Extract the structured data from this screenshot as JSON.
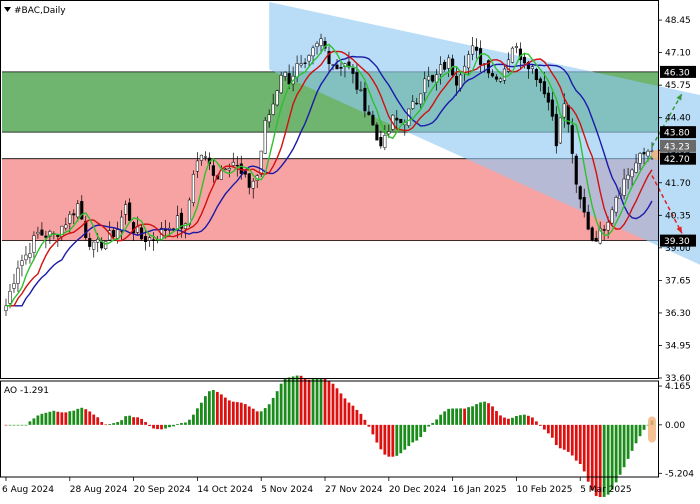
{
  "chart_data": [
    {
      "type": "candlestick",
      "title": "#BAC,Daily",
      "price_axis": {
        "ylim": [
          33.6,
          49.2
        ],
        "tick_labels": [
          "48.45",
          "47.10",
          "45.75",
          "44.40",
          "43.05",
          "41.70",
          "40.35",
          "39.00",
          "37.65",
          "36.30",
          "34.95",
          "33.60"
        ],
        "tick_values": [
          48.45,
          47.1,
          45.75,
          44.4,
          43.05,
          41.7,
          40.35,
          39.0,
          37.65,
          36.3,
          34.95,
          33.6
        ],
        "highlight_labels": [
          {
            "value": 46.3,
            "label": "46.30",
            "color": "#000000"
          },
          {
            "value": 43.8,
            "label": "43.80",
            "color": "#000000"
          },
          {
            "value": 43.23,
            "label": "43.23",
            "color": "#6a6a6a"
          },
          {
            "value": 42.7,
            "label": "42.70",
            "color": "#000000"
          },
          {
            "value": 39.3,
            "label": "39.30",
            "color": "#000000"
          }
        ]
      },
      "time_axis": {
        "labels": [
          "6 Aug 2024",
          "28 Aug 2024",
          "20 Sep 2024",
          "14 Oct 2024",
          "5 Nov 2024",
          "27 Nov 2024",
          "20 Dec 2024",
          "16 Jan 2025",
          "10 Feb 2025",
          "5 Mar 2025"
        ],
        "label_bar_index": [
          0,
          16,
          32,
          48,
          64,
          80,
          96,
          112,
          128,
          144
        ]
      },
      "zones": [
        {
          "name": "resistance-zone",
          "from": 43.8,
          "to": 46.3,
          "color": "#6fb46f"
        },
        {
          "name": "support-zone",
          "from": 39.3,
          "to": 42.7,
          "color": "#f7a3a3"
        }
      ],
      "channel": {
        "color": "#8fc8f2",
        "upper": [
          [
            66,
            49.2
          ],
          [
            168,
            45.2
          ]
        ],
        "lower": [
          [
            66,
            46.4
          ],
          [
            168,
            38.0
          ]
        ]
      },
      "forecast_arrows": [
        {
          "from": [
            162,
            43.2
          ],
          "to": [
            166,
            45.4
          ],
          "color": "#3a9a3a"
        },
        {
          "from": [
            162,
            42.0
          ],
          "to": [
            166,
            39.6
          ],
          "color": "#e02020"
        }
      ],
      "ohlc_anchors": [
        [
          0,
          36.6
        ],
        [
          3,
          38.3
        ],
        [
          5,
          38.7
        ],
        [
          8,
          39.6
        ],
        [
          12,
          39.5
        ],
        [
          16,
          40.3
        ],
        [
          18,
          40.8
        ],
        [
          20,
          39.6
        ],
        [
          22,
          39.0
        ],
        [
          25,
          39.3
        ],
        [
          28,
          39.8
        ],
        [
          30,
          40.7
        ],
        [
          32,
          39.8
        ],
        [
          34,
          39.4
        ],
        [
          37,
          39.4
        ],
        [
          40,
          39.8
        ],
        [
          43,
          40.1
        ],
        [
          45,
          39.8
        ],
        [
          47,
          42.2
        ],
        [
          49,
          42.9
        ],
        [
          51,
          42.4
        ],
        [
          53,
          42.0
        ],
        [
          55,
          42.5
        ],
        [
          57,
          42.6
        ],
        [
          59,
          42.0
        ],
        [
          61,
          41.6
        ],
        [
          63,
          42.0
        ],
        [
          65,
          44.1
        ],
        [
          67,
          45.0
        ],
        [
          69,
          46.3
        ],
        [
          71,
          46.0
        ],
        [
          73,
          46.5
        ],
        [
          75,
          46.4
        ],
        [
          77,
          47.1
        ],
        [
          79,
          47.6
        ],
        [
          81,
          46.9
        ],
        [
          83,
          46.5
        ],
        [
          85,
          46.7
        ],
        [
          87,
          46.1
        ],
        [
          89,
          45.3
        ],
        [
          91,
          44.6
        ],
        [
          93,
          43.5
        ],
        [
          95,
          43.4
        ],
        [
          97,
          44.3
        ],
        [
          99,
          44.2
        ],
        [
          101,
          44.6
        ],
        [
          103,
          45.1
        ],
        [
          105,
          46.2
        ],
        [
          107,
          45.8
        ],
        [
          109,
          46.4
        ],
        [
          111,
          46.7
        ],
        [
          113,
          46.0
        ],
        [
          115,
          46.8
        ],
        [
          117,
          47.2
        ],
        [
          119,
          46.8
        ],
        [
          121,
          46.5
        ],
        [
          123,
          46.0
        ],
        [
          125,
          46.5
        ],
        [
          127,
          47.4
        ],
        [
          129,
          47.0
        ],
        [
          131,
          46.7
        ],
        [
          133,
          46.2
        ],
        [
          135,
          45.6
        ],
        [
          137,
          44.5
        ],
        [
          138,
          43.5
        ],
        [
          140,
          45.0
        ],
        [
          142,
          43.0
        ],
        [
          143,
          41.4
        ],
        [
          145,
          40.4
        ],
        [
          147,
          39.4
        ],
        [
          149,
          39.6
        ],
        [
          151,
          40.3
        ],
        [
          153,
          41.2
        ],
        [
          155,
          41.8
        ],
        [
          157,
          42.3
        ],
        [
          159,
          42.7
        ],
        [
          162,
          43.23
        ]
      ],
      "moving_averages": [
        {
          "color": "#1a1aa8",
          "smoothing": 10,
          "lag": 4
        },
        {
          "color": "#d11010",
          "smoothing": 6,
          "lag": 2
        },
        {
          "color": "#2ec02e",
          "smoothing": 3,
          "lag": 1
        }
      ]
    },
    {
      "type": "histogram",
      "title": "AO -1.291",
      "ylim": [
        -5.6,
        4.6
      ],
      "tick_labels": [
        "4.165",
        "0.00",
        "-5.204"
      ],
      "tick_values": [
        4.165,
        0.0,
        -5.204
      ],
      "colors": {
        "up": "#1a8c1a",
        "down": "#dd1010"
      },
      "highlight": {
        "bar_index": 162,
        "color": "#f2b27a"
      }
    }
  ]
}
